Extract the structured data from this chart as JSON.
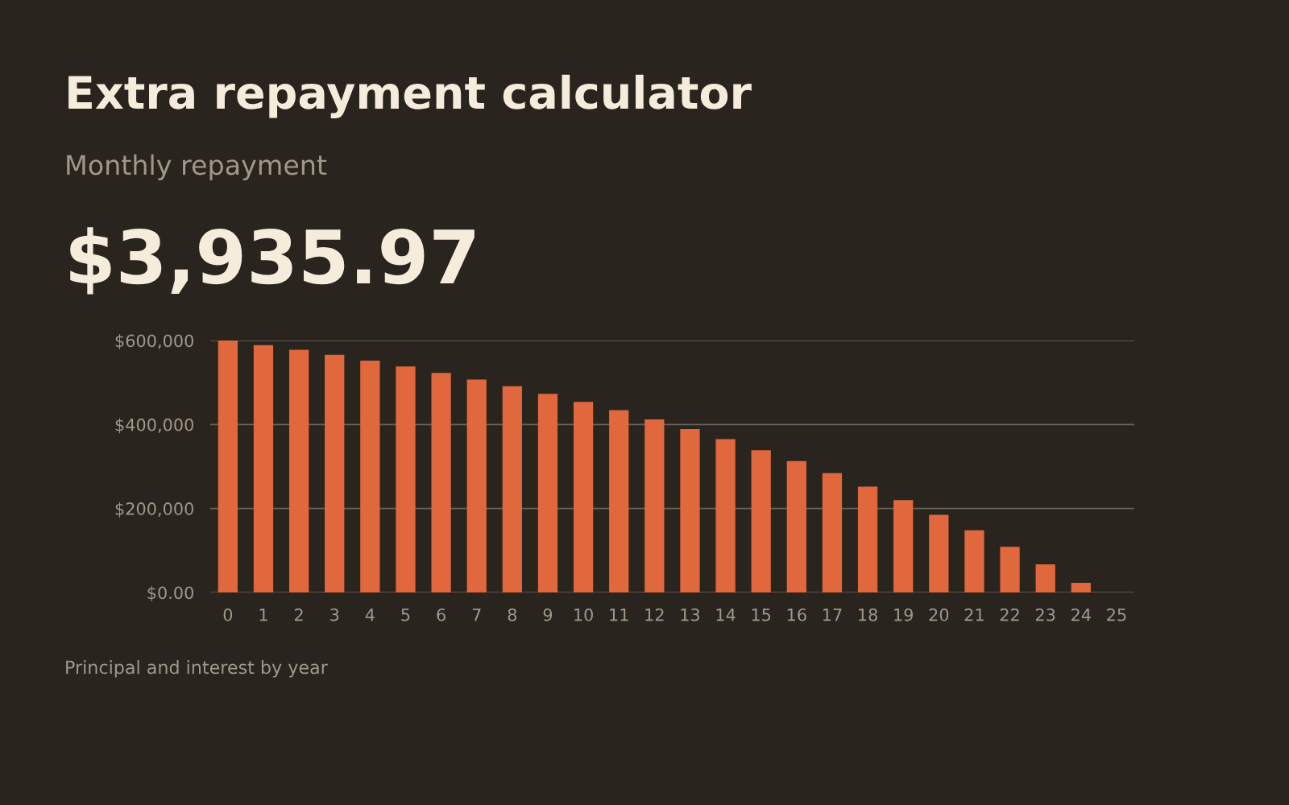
{
  "chart_data": {
    "type": "bar",
    "title": "Extra repayment calculator",
    "subtitle": "Monthly repayment",
    "annotations": [
      "$3,935.97",
      "Principal and interest by year"
    ],
    "categories": [
      "0",
      "1",
      "2",
      "3",
      "4",
      "5",
      "6",
      "7",
      "8",
      "9",
      "10",
      "11",
      "12",
      "13",
      "14",
      "15",
      "16",
      "17",
      "18",
      "19",
      "20",
      "21",
      "22",
      "23",
      "24",
      "25"
    ],
    "values": [
      600000,
      589000,
      578000,
      566000,
      552000,
      538000,
      523000,
      507000,
      491000,
      473000,
      454000,
      434000,
      412000,
      389000,
      365000,
      339000,
      313000,
      284000,
      252000,
      220000,
      185000,
      148000,
      109000,
      67000,
      23000,
      0
    ],
    "color": "#e0683c",
    "ylim": [
      0,
      600000
    ],
    "yticks": [
      {
        "value": 0,
        "label": "$0.00"
      },
      {
        "value": 200000,
        "label": "$200,000"
      },
      {
        "value": 400000,
        "label": "$400,000"
      },
      {
        "value": 600000,
        "label": "$600,000"
      }
    ],
    "grid": "y"
  }
}
